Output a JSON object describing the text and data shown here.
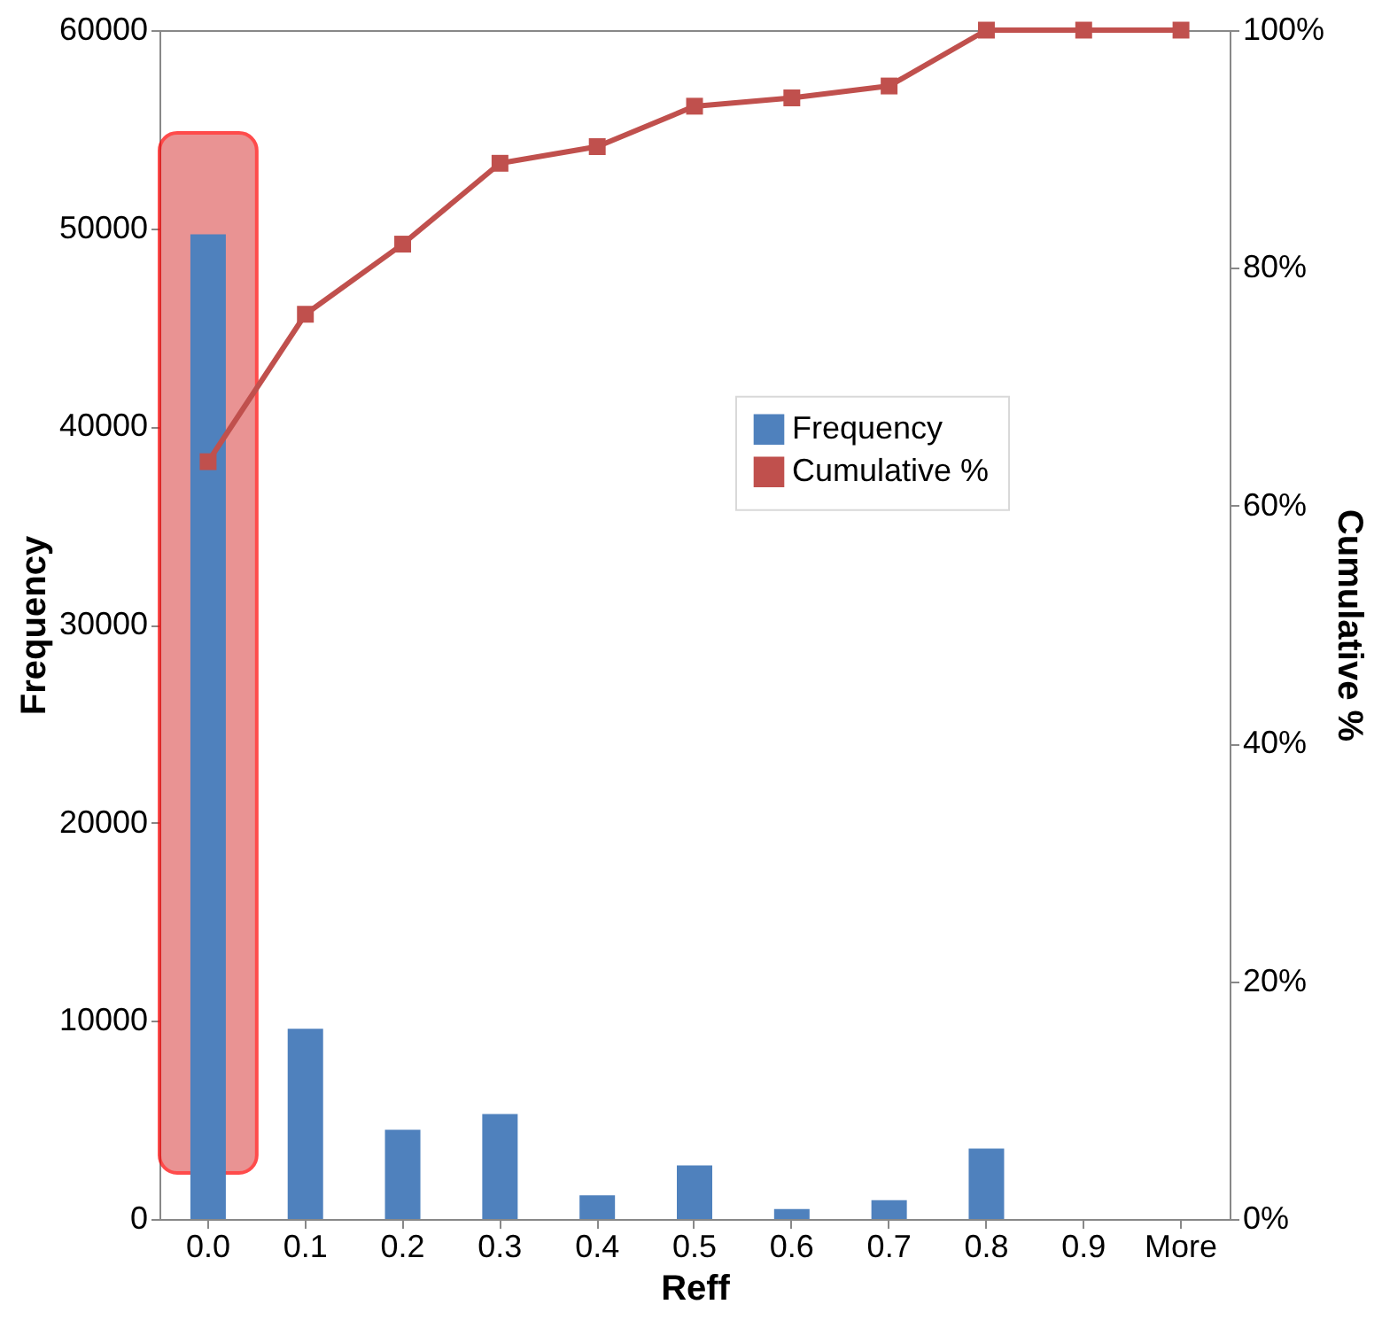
{
  "chart_data": {
    "type": "bar",
    "xlabel": "Reff",
    "ylabel": "Frequency",
    "y2label": "Cumulative %",
    "categories": [
      "0.0",
      "0.1",
      "0.2",
      "0.3",
      "0.4",
      "0.5",
      "0.6",
      "0.7",
      "0.8",
      "0.9",
      "More"
    ],
    "series": [
      {
        "name": "Frequency",
        "color": "#4f81bd",
        "values": [
          49700,
          9600,
          4500,
          5300,
          1200,
          2700,
          500,
          950,
          3550,
          0,
          0
        ]
      },
      {
        "name": "Cumulative %",
        "type": "line",
        "axis": "y2",
        "color": "#c0504d",
        "marker": "square",
        "values": [
          63.7,
          76.1,
          82.0,
          88.8,
          90.2,
          93.6,
          94.3,
          95.3,
          100,
          100,
          100
        ]
      }
    ],
    "ylim": [
      0,
      60000
    ],
    "yticks": [
      0,
      10000,
      20000,
      30000,
      40000,
      50000,
      60000
    ],
    "y2lim": [
      0,
      100
    ],
    "y2ticks": [
      {
        "value": 0,
        "label": "0%"
      },
      {
        "value": 20,
        "label": "20%"
      },
      {
        "value": 40,
        "label": "40%"
      },
      {
        "value": 60,
        "label": "60%"
      },
      {
        "value": 80,
        "label": "80%"
      },
      {
        "value": 100,
        "label": "100%"
      }
    ],
    "bands": [
      {
        "axis": "x",
        "from": "0.0",
        "to": "0.0",
        "color": "#e06666"
      }
    ],
    "legend": "right",
    "grid": false
  }
}
